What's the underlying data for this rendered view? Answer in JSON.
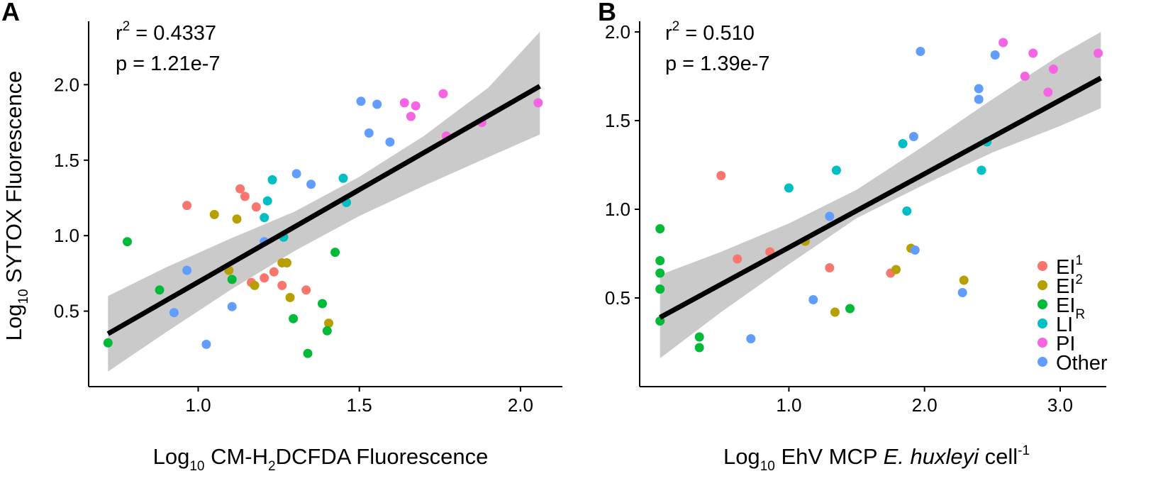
{
  "groups": {
    "EI1": {
      "color": "#F8766D"
    },
    "EI2": {
      "color": "#B79F00"
    },
    "EIR": {
      "color": "#00BA38"
    },
    "LI": {
      "color": "#00BFC4"
    },
    "PI": {
      "color": "#F564E3"
    },
    "Other": {
      "color": "#619CFF"
    }
  },
  "legend": {
    "items": [
      {
        "group": "EI1",
        "label": "EI",
        "sub": "1"
      },
      {
        "group": "EI2",
        "label": "EI",
        "sub": "2"
      },
      {
        "group": "EIR",
        "label": "EI",
        "sub": "R"
      },
      {
        "group": "LI",
        "label": "LI",
        "sub": ""
      },
      {
        "group": "PI",
        "label": "PI",
        "sub": ""
      },
      {
        "group": "Other",
        "label": "Other",
        "sub": ""
      }
    ]
  },
  "chart_data": [
    {
      "type": "scatter",
      "panel": "A",
      "stats": {
        "r2_prefix": "r",
        "r2_sup": "2",
        "r2_value": " = 0.4337",
        "p": "p = 1.21e-7"
      },
      "xlabel": {
        "pre": "Log",
        "sub": "10",
        "mid": " CM-H",
        "sub2": "2",
        "post": "DCFDA Fluorescence"
      },
      "ylabel": {
        "pre": "Log",
        "sub": "10",
        "post": " SYTOX Fluorescence"
      },
      "xlim": [
        0.66,
        2.13
      ],
      "ylim": [
        0.0,
        2.42
      ],
      "xticks": [
        {
          "v": 1.0,
          "label": "1.0"
        },
        {
          "v": 1.5,
          "label": "1.5"
        },
        {
          "v": 2.0,
          "label": "2.0"
        }
      ],
      "yticks": [
        {
          "v": 0.5,
          "label": "0.5"
        },
        {
          "v": 1.0,
          "label": "1.0"
        },
        {
          "v": 1.5,
          "label": "1.5"
        },
        {
          "v": 2.0,
          "label": "2.0"
        }
      ],
      "fit": {
        "x": [
          0.72,
          2.06
        ],
        "y": [
          0.35,
          1.99
        ]
      },
      "band": {
        "x": [
          0.72,
          0.9,
          1.1,
          1.3,
          1.5,
          1.7,
          1.9,
          2.06
        ],
        "lower": [
          0.1,
          0.36,
          0.64,
          0.9,
          1.13,
          1.33,
          1.52,
          1.67
        ],
        "upper": [
          0.6,
          0.79,
          0.98,
          1.16,
          1.39,
          1.66,
          1.98,
          2.35
        ]
      },
      "points": [
        {
          "x": 0.965,
          "y": 1.2,
          "g": "EI1"
        },
        {
          "x": 1.13,
          "y": 1.31,
          "g": "EI1"
        },
        {
          "x": 1.145,
          "y": 1.26,
          "g": "EI1"
        },
        {
          "x": 1.18,
          "y": 1.19,
          "g": "EI1"
        },
        {
          "x": 1.205,
          "y": 0.72,
          "g": "EI1"
        },
        {
          "x": 1.235,
          "y": 0.76,
          "g": "EI1"
        },
        {
          "x": 1.165,
          "y": 0.69,
          "g": "EI1"
        },
        {
          "x": 1.26,
          "y": 0.67,
          "g": "EI1"
        },
        {
          "x": 1.335,
          "y": 0.64,
          "g": "EI1"
        },
        {
          "x": 1.05,
          "y": 1.14,
          "g": "EI2"
        },
        {
          "x": 1.12,
          "y": 1.11,
          "g": "EI2"
        },
        {
          "x": 1.095,
          "y": 0.77,
          "g": "EI2"
        },
        {
          "x": 1.175,
          "y": 0.67,
          "g": "EI2"
        },
        {
          "x": 1.26,
          "y": 0.82,
          "g": "EI2"
        },
        {
          "x": 1.275,
          "y": 0.82,
          "g": "EI2"
        },
        {
          "x": 1.285,
          "y": 0.59,
          "g": "EI2"
        },
        {
          "x": 1.405,
          "y": 0.42,
          "g": "EI2"
        },
        {
          "x": 0.72,
          "y": 0.29,
          "g": "EIR"
        },
        {
          "x": 0.78,
          "y": 0.96,
          "g": "EIR"
        },
        {
          "x": 0.88,
          "y": 0.64,
          "g": "EIR"
        },
        {
          "x": 1.105,
          "y": 0.71,
          "g": "EIR"
        },
        {
          "x": 1.295,
          "y": 0.45,
          "g": "EIR"
        },
        {
          "x": 1.34,
          "y": 0.22,
          "g": "EIR"
        },
        {
          "x": 1.385,
          "y": 0.55,
          "g": "EIR"
        },
        {
          "x": 1.4,
          "y": 0.37,
          "g": "EIR"
        },
        {
          "x": 1.425,
          "y": 0.89,
          "g": "EIR"
        },
        {
          "x": 1.205,
          "y": 1.12,
          "g": "LI"
        },
        {
          "x": 1.215,
          "y": 1.23,
          "g": "LI"
        },
        {
          "x": 1.23,
          "y": 1.37,
          "g": "LI"
        },
        {
          "x": 1.265,
          "y": 0.99,
          "g": "LI"
        },
        {
          "x": 1.45,
          "y": 1.38,
          "g": "LI"
        },
        {
          "x": 1.46,
          "y": 1.22,
          "g": "LI"
        },
        {
          "x": 1.64,
          "y": 1.88,
          "g": "PI"
        },
        {
          "x": 1.66,
          "y": 1.79,
          "g": "PI"
        },
        {
          "x": 1.675,
          "y": 1.86,
          "g": "PI"
        },
        {
          "x": 1.76,
          "y": 1.94,
          "g": "PI"
        },
        {
          "x": 1.77,
          "y": 1.66,
          "g": "PI"
        },
        {
          "x": 1.88,
          "y": 1.75,
          "g": "PI"
        },
        {
          "x": 2.055,
          "y": 1.88,
          "g": "PI"
        },
        {
          "x": 0.925,
          "y": 0.49,
          "g": "Other"
        },
        {
          "x": 0.965,
          "y": 0.77,
          "g": "Other"
        },
        {
          "x": 1.025,
          "y": 0.28,
          "g": "Other"
        },
        {
          "x": 1.105,
          "y": 0.53,
          "g": "Other"
        },
        {
          "x": 1.205,
          "y": 0.96,
          "g": "Other"
        },
        {
          "x": 1.305,
          "y": 1.41,
          "g": "Other"
        },
        {
          "x": 1.35,
          "y": 1.34,
          "g": "Other"
        },
        {
          "x": 1.505,
          "y": 1.89,
          "g": "Other"
        },
        {
          "x": 1.53,
          "y": 1.68,
          "g": "Other"
        },
        {
          "x": 1.555,
          "y": 1.87,
          "g": "Other"
        },
        {
          "x": 1.595,
          "y": 1.62,
          "g": "Other"
        }
      ]
    },
    {
      "type": "scatter",
      "panel": "B",
      "stats": {
        "r2_prefix": "r",
        "r2_sup": "2",
        "r2_value": " = 0.510",
        "p": "p = 1.39e-7"
      },
      "xlabel": {
        "pre": "Log",
        "sub": "10",
        "mid": " EhV MCP ",
        "italic": "E. huxleyi",
        "post": " cell",
        "sup": "-1"
      },
      "ylabel": null,
      "xlim": [
        -0.1,
        3.34
      ],
      "ylim": [
        0.0,
        2.06
      ],
      "xticks": [
        {
          "v": 1.0,
          "label": "1.0"
        },
        {
          "v": 2.0,
          "label": "2.0"
        },
        {
          "v": 3.0,
          "label": "3.0"
        }
      ],
      "yticks": [
        {
          "v": 0.5,
          "label": "0.5"
        },
        {
          "v": 1.0,
          "label": "1.0"
        },
        {
          "v": 1.5,
          "label": "1.5"
        },
        {
          "v": 2.0,
          "label": "2.0"
        }
      ],
      "fit": {
        "x": [
          0.05,
          3.3
        ],
        "y": [
          0.39,
          1.74
        ]
      },
      "band": {
        "x": [
          0.05,
          0.5,
          1.0,
          1.5,
          2.0,
          2.5,
          3.0,
          3.3
        ],
        "lower": [
          0.16,
          0.42,
          0.69,
          0.95,
          1.14,
          1.32,
          1.47,
          1.57
        ],
        "upper": [
          0.63,
          0.76,
          0.92,
          1.11,
          1.36,
          1.62,
          1.87,
          2.0
        ]
      },
      "points": [
        {
          "x": 0.5,
          "y": 1.19,
          "g": "EI1"
        },
        {
          "x": 0.62,
          "y": 0.72,
          "g": "EI1"
        },
        {
          "x": 0.86,
          "y": 0.76,
          "g": "EI1"
        },
        {
          "x": 1.3,
          "y": 0.67,
          "g": "EI1"
        },
        {
          "x": 1.75,
          "y": 0.64,
          "g": "EI1"
        },
        {
          "x": 1.12,
          "y": 0.82,
          "g": "EI2"
        },
        {
          "x": 1.34,
          "y": 0.42,
          "g": "EI2"
        },
        {
          "x": 1.79,
          "y": 0.66,
          "g": "EI2"
        },
        {
          "x": 1.9,
          "y": 0.78,
          "g": "EI2"
        },
        {
          "x": 2.29,
          "y": 0.6,
          "g": "EI2"
        },
        {
          "x": 0.05,
          "y": 0.89,
          "g": "EIR"
        },
        {
          "x": 0.05,
          "y": 0.71,
          "g": "EIR"
        },
        {
          "x": 0.05,
          "y": 0.64,
          "g": "EIR"
        },
        {
          "x": 0.05,
          "y": 0.55,
          "g": "EIR"
        },
        {
          "x": 0.05,
          "y": 0.37,
          "g": "EIR"
        },
        {
          "x": 0.34,
          "y": 0.28,
          "g": "EIR"
        },
        {
          "x": 0.34,
          "y": 0.22,
          "g": "EIR"
        },
        {
          "x": 1.45,
          "y": 0.44,
          "g": "EIR"
        },
        {
          "x": 1.0,
          "y": 1.12,
          "g": "LI"
        },
        {
          "x": 1.35,
          "y": 1.22,
          "g": "LI"
        },
        {
          "x": 1.84,
          "y": 1.37,
          "g": "LI"
        },
        {
          "x": 1.87,
          "y": 0.99,
          "g": "LI"
        },
        {
          "x": 2.42,
          "y": 1.22,
          "g": "LI"
        },
        {
          "x": 2.46,
          "y": 1.38,
          "g": "LI"
        },
        {
          "x": 2.58,
          "y": 1.94,
          "g": "PI"
        },
        {
          "x": 2.74,
          "y": 1.75,
          "g": "PI"
        },
        {
          "x": 2.8,
          "y": 1.88,
          "g": "PI"
        },
        {
          "x": 2.91,
          "y": 1.66,
          "g": "PI"
        },
        {
          "x": 2.95,
          "y": 1.79,
          "g": "PI"
        },
        {
          "x": 3.28,
          "y": 1.88,
          "g": "PI"
        },
        {
          "x": 0.72,
          "y": 0.27,
          "g": "Other"
        },
        {
          "x": 1.18,
          "y": 0.49,
          "g": "Other"
        },
        {
          "x": 1.3,
          "y": 0.96,
          "g": "Other"
        },
        {
          "x": 1.92,
          "y": 1.41,
          "g": "Other"
        },
        {
          "x": 1.93,
          "y": 0.77,
          "g": "Other"
        },
        {
          "x": 1.97,
          "y": 1.89,
          "g": "Other"
        },
        {
          "x": 2.28,
          "y": 0.53,
          "g": "Other"
        },
        {
          "x": 2.4,
          "y": 1.68,
          "g": "Other"
        },
        {
          "x": 2.4,
          "y": 1.62,
          "g": "Other"
        },
        {
          "x": 2.52,
          "y": 1.87,
          "g": "Other"
        }
      ]
    }
  ]
}
